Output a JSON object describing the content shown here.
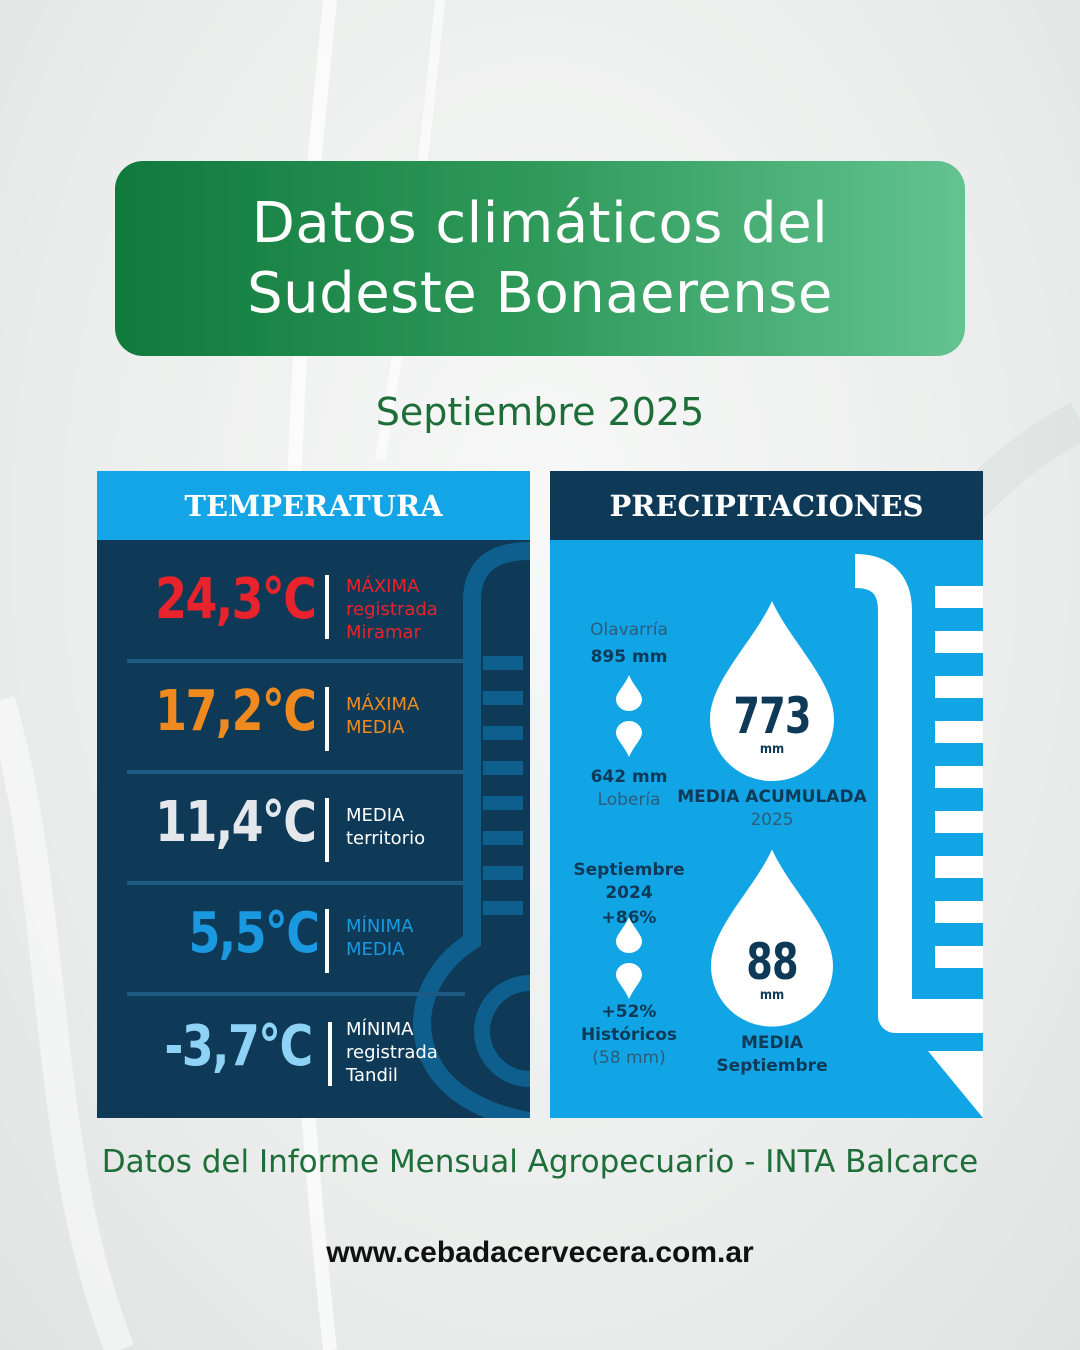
{
  "title": {
    "line1": "Datos climáticos del",
    "line2": "Sudeste Bonaerense"
  },
  "period": "Septiembre 2025",
  "temperature": {
    "header": "TEMPERATURA",
    "rows": [
      {
        "value": "24,3°C",
        "labels": [
          "MÁXIMA",
          "registrada",
          "Miramar"
        ],
        "color": "#e8232b",
        "label_color": "#e8232b"
      },
      {
        "value": "17,2°C",
        "labels": [
          "MÁXIMA",
          "MEDIA"
        ],
        "color": "#f08a1e",
        "label_color": "#f08a1e"
      },
      {
        "value": "11,4°C",
        "labels": [
          "MEDIA",
          "territorio"
        ],
        "color": "#e4e8ec",
        "label_color": "#ffffff"
      },
      {
        "value": "5,5°C",
        "labels": [
          "MÍNIMA",
          "MEDIA"
        ],
        "color": "#1a98e0",
        "label_color": "#1a98e0"
      },
      {
        "value": "-3,7°C",
        "labels": [
          "MÍNIMA",
          "registrada",
          "Tandil"
        ],
        "color": "#8ed3f5",
        "label_color": "#ffffff"
      }
    ]
  },
  "precipitation": {
    "header": "PRECIPITACIONES",
    "top_place": "Olavarría",
    "top_value": "895 mm",
    "bottom_value": "642 mm",
    "bottom_place": "Lobería",
    "accumulated": {
      "value": "773",
      "unit": "mm",
      "label": "MEDIA ACUMULADA",
      "year": "2025"
    },
    "compare_label": "Septiembre 2024",
    "compare_value": "+86%",
    "historic_value": "+52%",
    "historic_label": "Históricos",
    "historic_note": "(58 mm)",
    "september": {
      "value": "88",
      "unit": "mm",
      "label1": "MEDIA",
      "label2": "Septiembre"
    }
  },
  "source": "Datos del Informe Mensual Agropecuario - INTA Balcarce",
  "website": "www.cebadacervecera.com.ar"
}
